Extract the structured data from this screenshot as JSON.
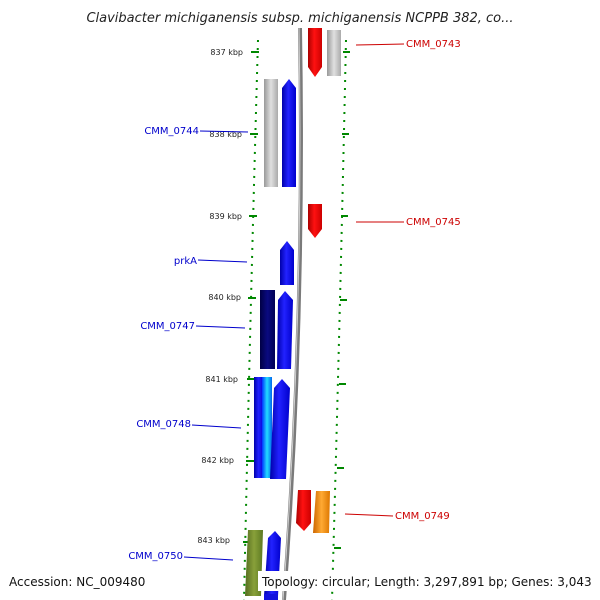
{
  "title": "Clavibacter michiganensis subsp. michiganensis NCPPB 382, co...",
  "accession": "Accession: NC_009480",
  "topology": "Topology: circular; Length: 3,297,891 bp; Genes: 3,043",
  "ticks": [
    "837 kbp",
    "838 kbp",
    "839 kbp",
    "840 kbp",
    "841 kbp",
    "842 kbp",
    "843 kbp"
  ],
  "genes_right": [
    "CMM_0743",
    "CMM_0745",
    "CMM_0749"
  ],
  "genes_left": [
    "CMM_0744",
    "prkA",
    "CMM_0747",
    "CMM_0748",
    "CMM_0750"
  ],
  "colors": {
    "forward": "#0000ee",
    "reverse": "#ee0000",
    "label_forward": "#0000cc",
    "label_reverse": "#cc0000",
    "gc_skew": "#008800",
    "backbone": "#888888"
  }
}
